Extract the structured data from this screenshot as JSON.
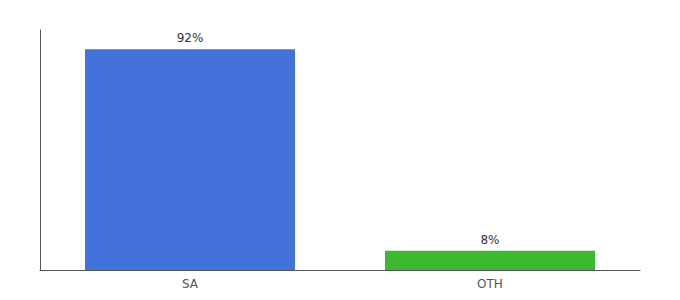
{
  "chart_data": {
    "type": "bar",
    "categories": [
      "SA",
      "OTH"
    ],
    "values": [
      92,
      8
    ],
    "value_labels": [
      "92%",
      "8%"
    ],
    "colors": [
      "#4472db",
      "#3cb832"
    ],
    "ylim": [
      0,
      100
    ],
    "data_labels": true,
    "tick_labels": "x",
    "grid": false
  }
}
